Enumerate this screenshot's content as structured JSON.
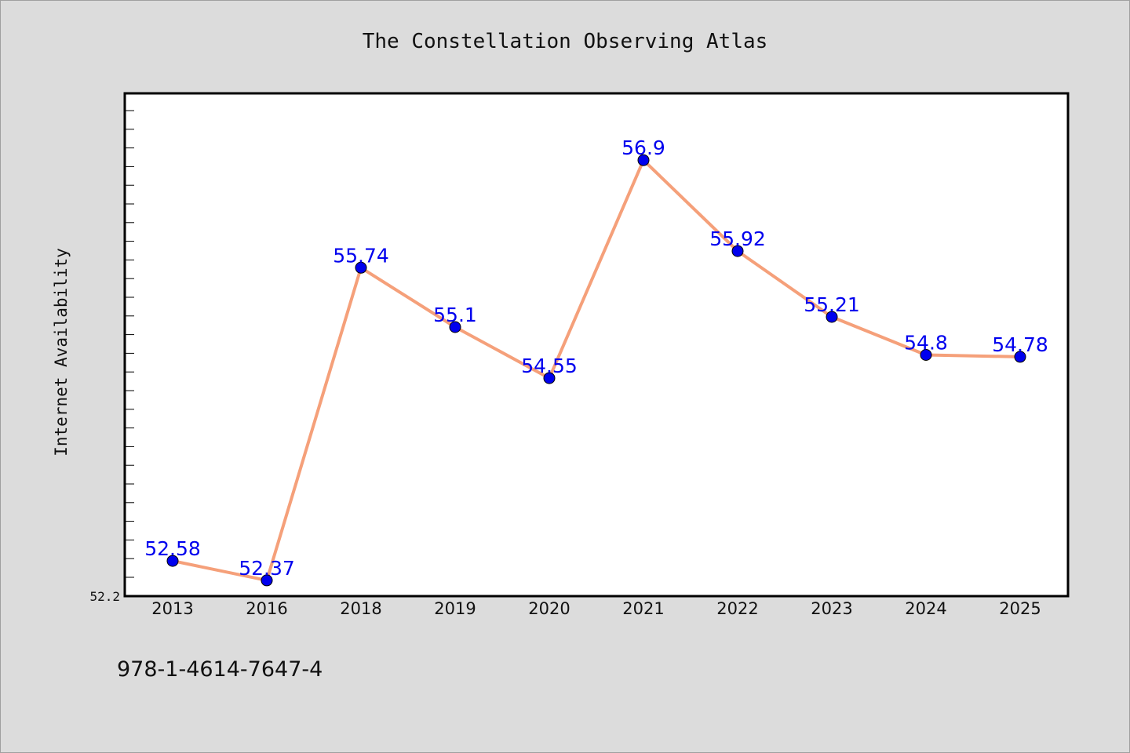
{
  "chart_data": {
    "type": "line",
    "title": "The Constellation Observing Atlas",
    "xlabel": "",
    "ylabel": "Internet Availability",
    "categories": [
      "2013",
      "2016",
      "2018",
      "2019",
      "2020",
      "2021",
      "2022",
      "2023",
      "2024",
      "2025"
    ],
    "series": [
      {
        "values": [
          52.58,
          52.37,
          55.74,
          55.1,
          54.55,
          56.9,
          55.92,
          55.21,
          54.8,
          54.78
        ],
        "data_labels": [
          "52.58",
          "52.37",
          "55.74",
          "55.1",
          "54.55",
          "56.9",
          "55.92",
          "55.21",
          "54.8",
          "54.78"
        ],
        "line_color": "#f5a07a",
        "marker_color": "#0000ee",
        "label_color": "#0000ee"
      }
    ],
    "y_tick_label": "52.2",
    "ylim": [
      52.2,
      57.62
    ],
    "grid": false,
    "legend": "none"
  },
  "footer": {
    "isbn": "978-1-4614-7647-4"
  }
}
